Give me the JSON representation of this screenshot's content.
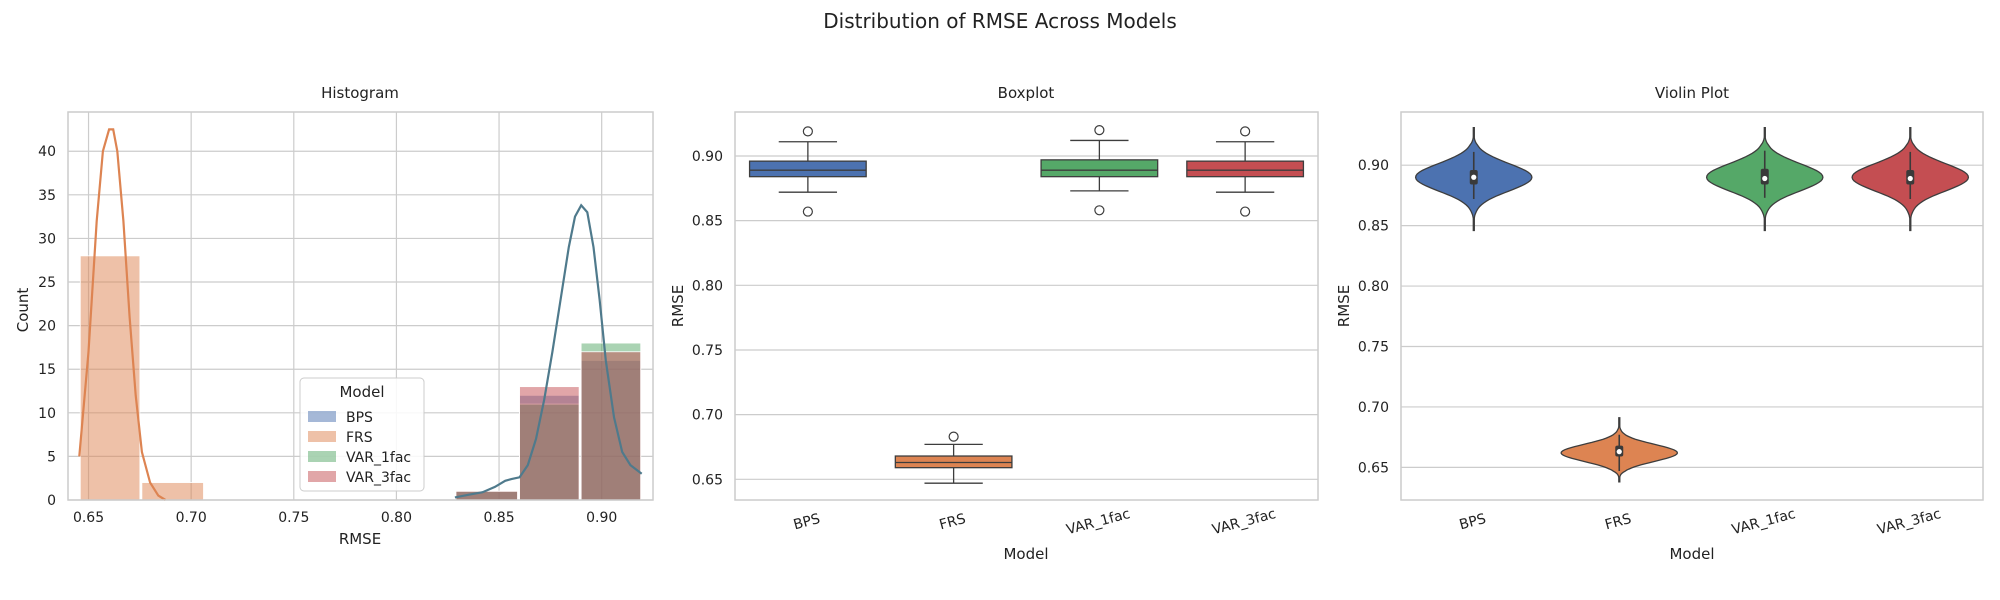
{
  "figure": {
    "title": "Distribution of RMSE Across Models"
  },
  "chart_data": [
    {
      "type": "histogram",
      "title": "Histogram",
      "xlabel": "RMSE",
      "ylabel": "Count",
      "xlim": [
        0.64,
        0.925
      ],
      "ylim": [
        0,
        44.5
      ],
      "xticks": [
        "0.65",
        "0.70",
        "0.75",
        "0.80",
        "0.85",
        "0.90"
      ],
      "yticks": [
        "0",
        "5",
        "10",
        "15",
        "20",
        "25",
        "30",
        "35",
        "40"
      ],
      "grid": true,
      "legend": {
        "title": "Model",
        "position": "lower-center",
        "entries": [
          "BPS",
          "FRS",
          "VAR_1fac",
          "VAR_3fac"
        ]
      },
      "bin_edges": [
        0.6455,
        0.6755,
        0.7065,
        0.8285,
        0.8595,
        0.8895,
        0.9195
      ],
      "series": [
        {
          "name": "BPS",
          "color": "#4c72b0",
          "counts": [
            0,
            0,
            0,
            1,
            12,
            16
          ]
        },
        {
          "name": "FRS",
          "color": "#dd8452",
          "counts": [
            28,
            2,
            0,
            0,
            0,
            0
          ]
        },
        {
          "name": "VAR_1fac",
          "color": "#55a868",
          "counts": [
            0,
            0,
            0,
            1,
            11,
            18
          ]
        },
        {
          "name": "VAR_3fac",
          "color": "#c44e52",
          "counts": [
            0,
            0,
            0,
            1,
            13,
            17
          ]
        }
      ],
      "kde": [
        {
          "name": "FRS",
          "color": "#dd8452",
          "x": [
            0.6455,
            0.65,
            0.654,
            0.657,
            0.66,
            0.662,
            0.664,
            0.667,
            0.67,
            0.673,
            0.676,
            0.68,
            0.684,
            0.6875
          ],
          "y": [
            5,
            17,
            32,
            40,
            42.5,
            42.5,
            40,
            32,
            21,
            12,
            5.5,
            2,
            0.5,
            0
          ]
        },
        {
          "name": "VAR_1fac / VAR_3fac / BPS (overlapping)",
          "color": "#4f7a8c",
          "x": [
            0.8285,
            0.835,
            0.842,
            0.848,
            0.853,
            0.856,
            0.86,
            0.864,
            0.868,
            0.872,
            0.876,
            0.88,
            0.884,
            0.887,
            0.89,
            0.893,
            0.896,
            0.899,
            0.902,
            0.906,
            0.91,
            0.914,
            0.9195
          ],
          "y": [
            0.3,
            0.6,
            0.9,
            1.5,
            2.2,
            2.4,
            2.6,
            4,
            7,
            11.5,
            17,
            23,
            29,
            32.5,
            33.8,
            33,
            29,
            23,
            16,
            9.5,
            5.5,
            4,
            3
          ]
        }
      ]
    },
    {
      "type": "box",
      "title": "Boxplot",
      "xlabel": "Model",
      "ylabel": "RMSE",
      "ylim": [
        0.634,
        0.934
      ],
      "yticks": [
        "0.65",
        "0.70",
        "0.75",
        "0.80",
        "0.85",
        "0.90"
      ],
      "categories": [
        "BPS",
        "FRS",
        "VAR_1fac",
        "VAR_3fac"
      ],
      "boxes": [
        {
          "category": "BPS",
          "color": "#4c72b0",
          "whislo": 0.872,
          "q1": 0.884,
          "med": 0.889,
          "q3": 0.896,
          "whishi": 0.911,
          "fliers": [
            0.919,
            0.857
          ]
        },
        {
          "category": "FRS",
          "color": "#dd8452",
          "whislo": 0.647,
          "q1": 0.659,
          "med": 0.663,
          "q3": 0.668,
          "whishi": 0.677,
          "fliers": [
            0.683
          ]
        },
        {
          "category": "VAR_1fac",
          "color": "#55a868",
          "whislo": 0.873,
          "q1": 0.884,
          "med": 0.889,
          "q3": 0.897,
          "whishi": 0.912,
          "fliers": [
            0.92,
            0.858
          ]
        },
        {
          "category": "VAR_3fac",
          "color": "#c44e52",
          "whislo": 0.872,
          "q1": 0.884,
          "med": 0.889,
          "q3": 0.896,
          "whishi": 0.911,
          "fliers": [
            0.919,
            0.857
          ]
        }
      ],
      "grid": true
    },
    {
      "type": "violin",
      "title": "Violin Plot",
      "xlabel": "Model",
      "ylabel": "RMSE",
      "ylim": [
        0.623,
        0.944
      ],
      "yticks": [
        "0.65",
        "0.70",
        "0.75",
        "0.80",
        "0.85",
        "0.90"
      ],
      "categories": [
        "BPS",
        "FRS",
        "VAR_1fac",
        "VAR_3fac"
      ],
      "violins": [
        {
          "category": "BPS",
          "color": "#4c72b0",
          "min": 0.846,
          "max": 0.931,
          "center": 0.89,
          "q1": 0.884,
          "med": 0.89,
          "q3": 0.896,
          "whislo": 0.872,
          "whishi": 0.911
        },
        {
          "category": "FRS",
          "color": "#dd8452",
          "min": 0.638,
          "max": 0.691,
          "center": 0.662,
          "q1": 0.659,
          "med": 0.663,
          "q3": 0.668,
          "whislo": 0.647,
          "whishi": 0.677
        },
        {
          "category": "VAR_1fac",
          "color": "#55a868",
          "min": 0.846,
          "max": 0.931,
          "center": 0.89,
          "q1": 0.884,
          "med": 0.889,
          "q3": 0.897,
          "whislo": 0.873,
          "whishi": 0.912
        },
        {
          "category": "VAR_3fac",
          "color": "#c44e52",
          "min": 0.846,
          "max": 0.931,
          "center": 0.89,
          "q1": 0.884,
          "med": 0.889,
          "q3": 0.896,
          "whislo": 0.872,
          "whishi": 0.911
        }
      ],
      "grid": true
    }
  ]
}
